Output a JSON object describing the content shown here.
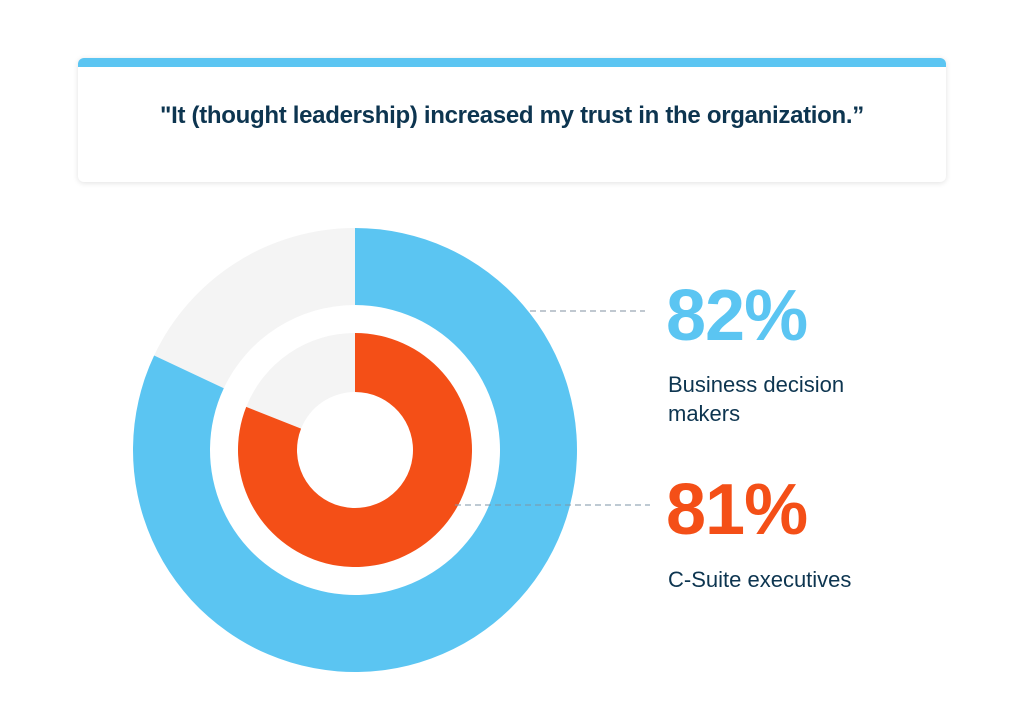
{
  "chart_data": {
    "type": "pie",
    "title": "\"It (thought leadership) increased my trust in the organization.”",
    "series": [
      {
        "name": "Business decision makers",
        "value": 82,
        "label": "82%",
        "color": "#5bc5f2"
      },
      {
        "name": "C-Suite executives",
        "value": 81,
        "label": "81%",
        "color": "#f44f17"
      }
    ],
    "remainder_color": "#f4f4f4",
    "max": 100
  }
}
